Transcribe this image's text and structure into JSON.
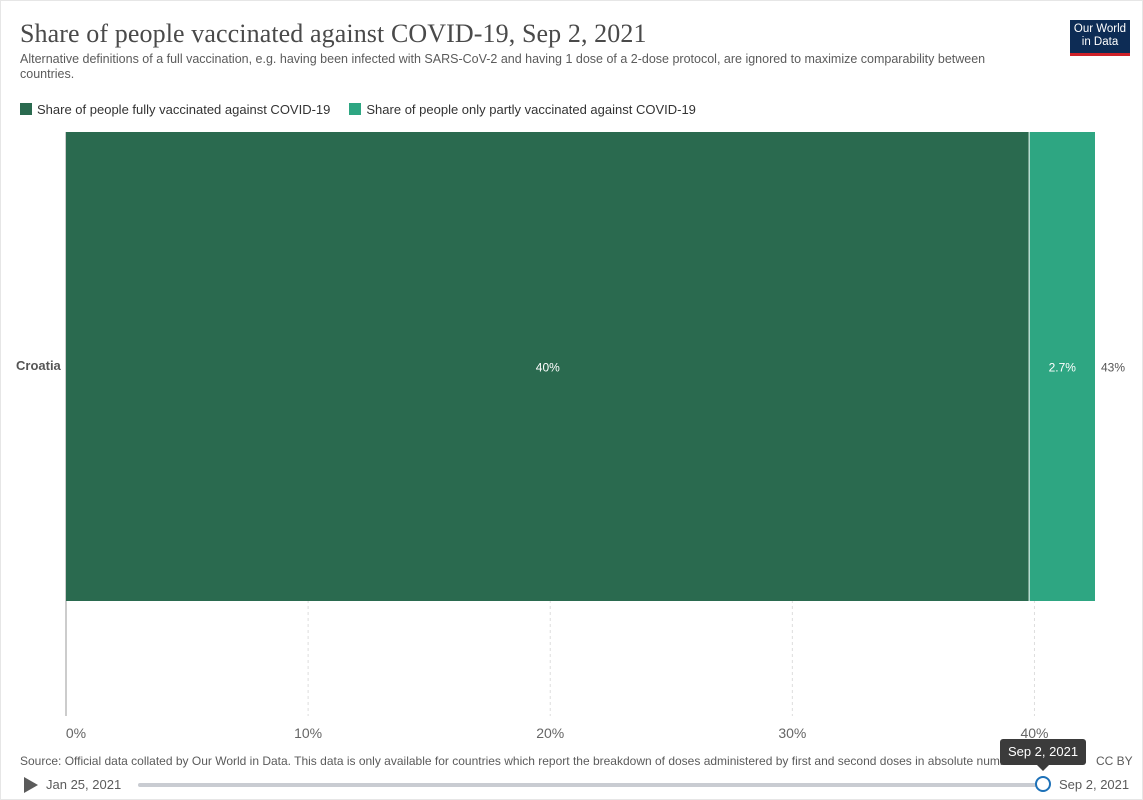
{
  "header": {
    "title": "Share of people vaccinated against COVID-19, Sep 2, 2021",
    "subtitle": "Alternative definitions of a full vaccination, e.g. having been infected with SARS-CoV-2 and having 1 dose of a 2-dose protocol, are ignored to maximize comparability between countries.",
    "logo_line1": "Our World",
    "logo_line2": "in Data"
  },
  "footer": {
    "source": "Source: Official data collated by Our World in Data. This data is only available for countries which report the breakdown of doses administered by first and second doses in absolute numbers.",
    "license": "CC BY"
  },
  "timeline": {
    "start_label": "Jan 25, 2021",
    "end_label": "Sep 2, 2021",
    "tooltip": "Sep 2, 2021",
    "position": 1.0
  },
  "colors": {
    "fully": "#2a6a4f",
    "partly": "#2ea682",
    "grid": "#dddddd",
    "axis_text": "#666666"
  },
  "chart_data": {
    "type": "bar",
    "orientation": "horizontal",
    "stacked": true,
    "categories": [
      "Croatia"
    ],
    "series": [
      {
        "name": "Share of people fully vaccinated against COVID-19",
        "values": [
          39.8
        ],
        "label": "40%"
      },
      {
        "name": "Share of people only partly vaccinated against COVID-19",
        "values": [
          2.7
        ],
        "label": "2.7%"
      }
    ],
    "totals": [
      "43%"
    ],
    "x_ticks": [
      0,
      10,
      20,
      30,
      40
    ],
    "x_tick_labels": [
      "0%",
      "10%",
      "20%",
      "30%",
      "40%"
    ],
    "xlim": [
      0,
      42.5
    ],
    "grid": true,
    "legend_position": "top-left"
  }
}
